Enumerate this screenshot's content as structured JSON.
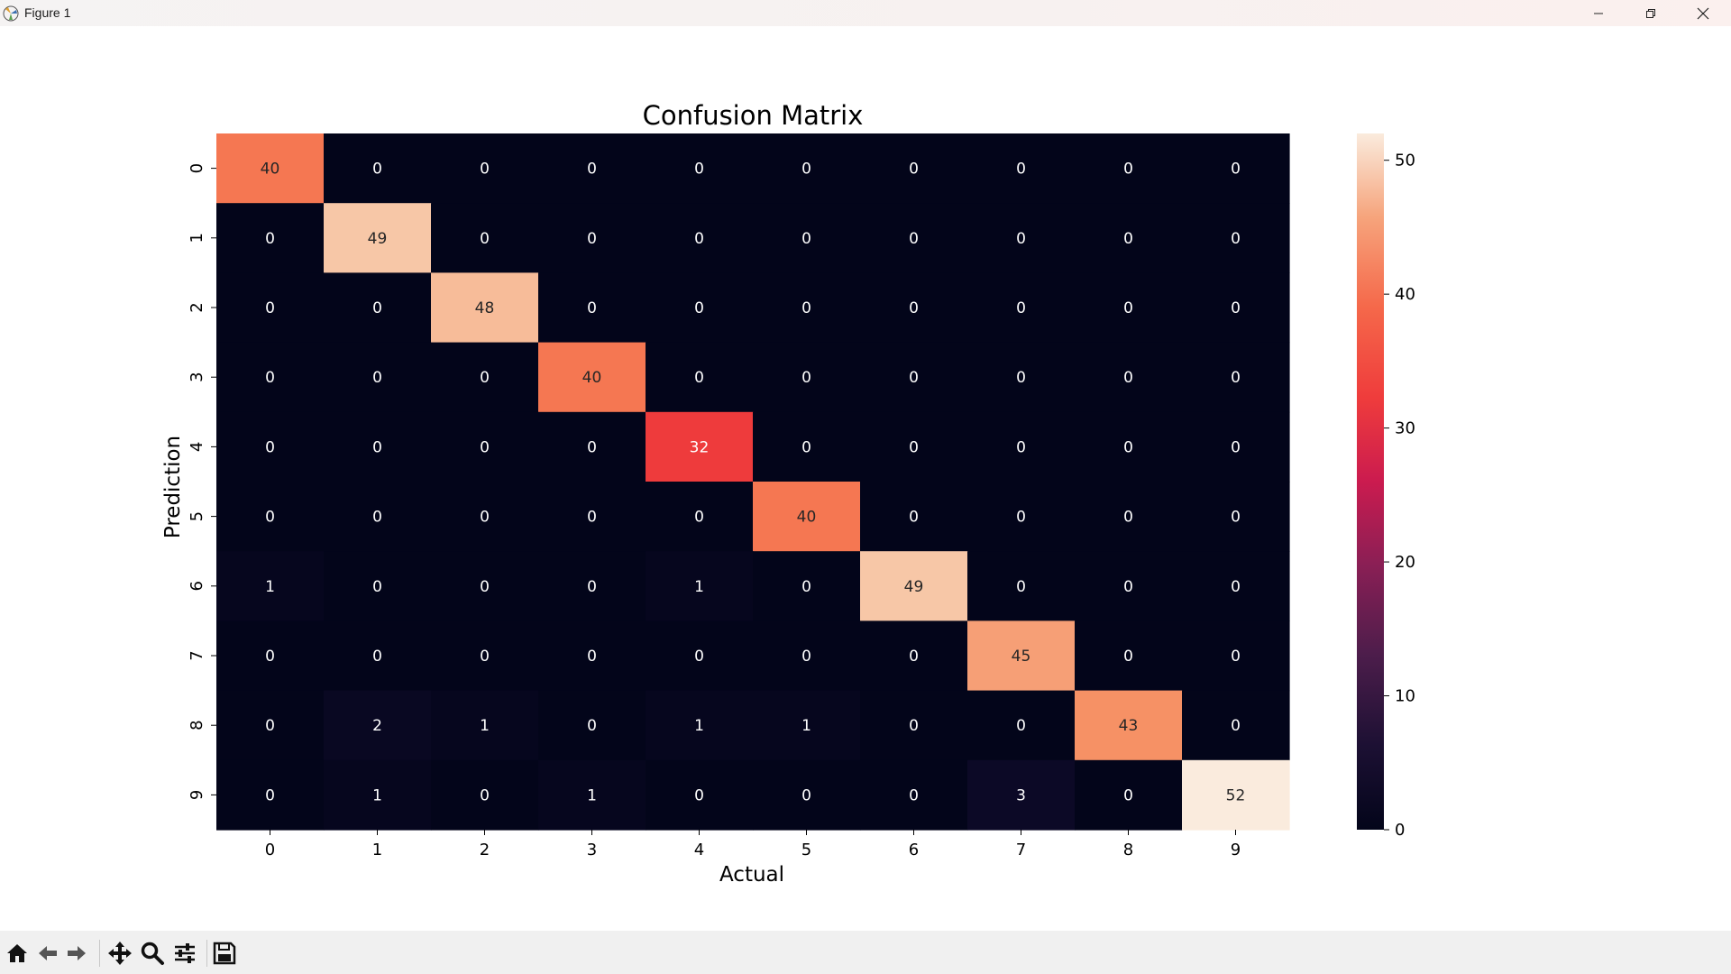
{
  "window": {
    "title": "Figure 1"
  },
  "toolbar": {
    "buttons": [
      "home-icon",
      "back-arrow-icon",
      "forward-arrow-icon",
      "pan-icon",
      "zoom-icon",
      "configure-subplots-icon",
      "save-icon"
    ]
  },
  "chart_data": {
    "type": "heatmap",
    "title": "Confusion Matrix",
    "xlabel": "Actual",
    "ylabel": "Prediction",
    "x_categories": [
      "0",
      "1",
      "2",
      "3",
      "4",
      "5",
      "6",
      "7",
      "8",
      "9"
    ],
    "y_categories": [
      "0",
      "1",
      "2",
      "3",
      "4",
      "5",
      "6",
      "7",
      "8",
      "9"
    ],
    "values": [
      [
        40,
        0,
        0,
        0,
        0,
        0,
        0,
        0,
        0,
        0
      ],
      [
        0,
        49,
        0,
        0,
        0,
        0,
        0,
        0,
        0,
        0
      ],
      [
        0,
        0,
        48,
        0,
        0,
        0,
        0,
        0,
        0,
        0
      ],
      [
        0,
        0,
        0,
        40,
        0,
        0,
        0,
        0,
        0,
        0
      ],
      [
        0,
        0,
        0,
        0,
        32,
        0,
        0,
        0,
        0,
        0
      ],
      [
        0,
        0,
        0,
        0,
        0,
        40,
        0,
        0,
        0,
        0
      ],
      [
        1,
        0,
        0,
        0,
        1,
        0,
        49,
        0,
        0,
        0
      ],
      [
        0,
        0,
        0,
        0,
        0,
        0,
        0,
        45,
        0,
        0
      ],
      [
        0,
        2,
        1,
        0,
        1,
        1,
        0,
        0,
        43,
        0
      ],
      [
        0,
        1,
        0,
        1,
        0,
        0,
        0,
        3,
        0,
        52
      ]
    ],
    "colormap": "rocket",
    "vmin": 0,
    "vmax": 52,
    "colorbar_ticks": [
      0,
      10,
      20,
      30,
      40,
      50
    ]
  }
}
